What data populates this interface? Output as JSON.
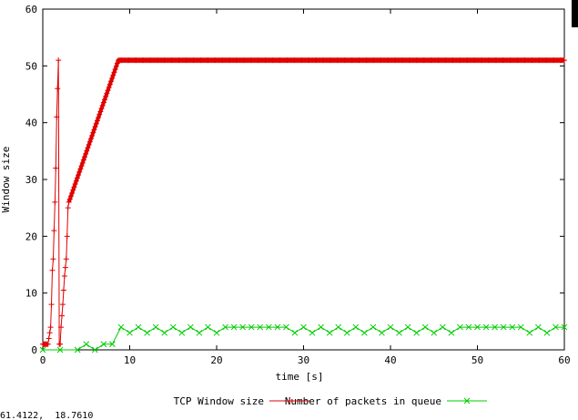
{
  "status_coords": "61.4122,  18.7610",
  "colors": {
    "series1": "#e00000",
    "series2": "#00cc00",
    "axis": "#000000"
  },
  "chart_data": {
    "type": "line",
    "title": "",
    "xlabel": "time [s]",
    "ylabel": "Window size",
    "xlim": [
      0,
      60
    ],
    "ylim": [
      0,
      60
    ],
    "xticks": [
      0,
      10,
      20,
      30,
      40,
      50,
      60
    ],
    "yticks": [
      0,
      10,
      20,
      30,
      40,
      50,
      60
    ],
    "grid": false,
    "legend": "bottom-center",
    "series": [
      {
        "name": "TCP Window size",
        "color": "#e00000",
        "marker": "+",
        "x": [
          0,
          0.3,
          0.6,
          0.9,
          1.0,
          1.1,
          1.2,
          1.3,
          1.4,
          1.5,
          1.6,
          1.7,
          1.8,
          1.9,
          2.0,
          2.1,
          2.3,
          2.5,
          2.7,
          2.8,
          2.9,
          3.0,
          8.7,
          60
        ],
        "y": [
          1,
          1,
          1,
          4,
          8,
          14,
          16,
          21,
          26,
          32,
          41,
          46,
          51,
          1,
          1,
          4,
          8,
          13,
          16,
          20,
          25,
          26,
          51,
          51
        ]
      },
      {
        "name": "Number of packets in queue",
        "color": "#00cc00",
        "marker": "x",
        "x": [
          0,
          2,
          4,
          5,
          6,
          7,
          8,
          9,
          10,
          11,
          12,
          13,
          14,
          15,
          16,
          17,
          18,
          19,
          20,
          21,
          22,
          23,
          24,
          25,
          26,
          27,
          28,
          29,
          30,
          31,
          32,
          33,
          34,
          35,
          36,
          37,
          38,
          39,
          40,
          41,
          42,
          43,
          44,
          45,
          46,
          47,
          48,
          49,
          50,
          51,
          52,
          53,
          54,
          55,
          56,
          57,
          58,
          59,
          60
        ],
        "y": [
          0,
          0,
          0,
          1,
          0,
          1,
          1,
          4,
          3,
          4,
          3,
          4,
          3,
          4,
          3,
          4,
          3,
          4,
          3,
          4,
          4,
          4,
          4,
          4,
          4,
          4,
          4,
          3,
          4,
          3,
          4,
          3,
          4,
          3,
          4,
          3,
          4,
          3,
          4,
          3,
          4,
          3,
          4,
          3,
          4,
          3,
          4,
          4,
          4,
          4,
          4,
          4,
          4,
          4,
          3,
          4,
          3,
          4,
          4
        ]
      }
    ]
  }
}
